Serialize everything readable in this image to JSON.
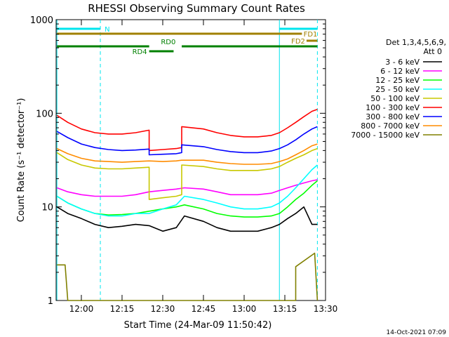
{
  "chart_data": {
    "type": "line",
    "title": "RHESSI Observing Summary Count Rates",
    "xlabel": "Start Time (24-Mar-09 11:50:42)",
    "ylabel": "Count Rate (s⁻¹ detector⁻¹)",
    "scale": {
      "y": "log"
    },
    "xlim": [
      "11:50:42",
      "13:30:00"
    ],
    "ylim": [
      1,
      1000
    ],
    "x_ticks": [
      "12:00",
      "12:15",
      "12:30",
      "12:45",
      "13:00",
      "13:15",
      "13:30"
    ],
    "y_ticks": [
      "1",
      "10",
      "100",
      "1000"
    ],
    "detector_info": {
      "line1": "Det 1,3,4,5,6,9,",
      "line2": "Att 0"
    },
    "legend": {
      "placement": "right"
    },
    "series": [
      {
        "name": "3 - 6 keV",
        "color": "#000000",
        "x": [
          "11:51",
          "11:55",
          "12:00",
          "12:05",
          "12:10",
          "12:15",
          "12:20",
          "12:25",
          "12:30",
          "12:35",
          "12:38",
          "12:45",
          "12:50",
          "12:55",
          "13:00",
          "13:05",
          "13:10",
          "13:13",
          "13:16",
          "13:19",
          "13:22",
          "13:25",
          "13:27"
        ],
        "y": [
          10,
          8.5,
          7.5,
          6.5,
          6,
          6.2,
          6.5,
          6.3,
          5.5,
          6,
          8,
          7,
          6,
          5.5,
          5.5,
          5.5,
          6,
          6.5,
          7.5,
          8.5,
          10,
          6.5,
          6.5
        ]
      },
      {
        "name": "6 - 12 keV",
        "color": "#ff00ff",
        "x": [
          "11:51",
          "11:55",
          "12:00",
          "12:05",
          "12:10",
          "12:15",
          "12:20",
          "12:25",
          "12:30",
          "12:35",
          "12:38",
          "12:45",
          "12:50",
          "12:55",
          "13:00",
          "13:05",
          "13:10",
          "13:13",
          "13:16",
          "13:19",
          "13:22",
          "13:25",
          "13:27"
        ],
        "y": [
          16,
          14.5,
          13.5,
          13,
          13,
          13,
          13.5,
          14.5,
          15,
          15.5,
          16,
          15.5,
          14.5,
          13.5,
          13.5,
          13.5,
          14,
          15,
          16,
          17,
          18,
          19,
          19.5
        ]
      },
      {
        "name": "12 - 25 keV",
        "color": "#00ff00",
        "x": [
          "11:51",
          "11:55",
          "12:00",
          "12:05",
          "12:10",
          "12:15",
          "12:20",
          "12:25",
          "12:30",
          "12:35",
          "12:38",
          "12:45",
          "12:50",
          "12:55",
          "13:00",
          "13:05",
          "13:10",
          "13:13",
          "13:16",
          "13:19",
          "13:22",
          "13:25",
          "13:27"
        ],
        "y": [
          13,
          11,
          9.5,
          8.5,
          8.2,
          8.3,
          8.5,
          9,
          9.5,
          10,
          10.5,
          9.5,
          8.5,
          8,
          7.8,
          7.8,
          8,
          8.5,
          10,
          12,
          14,
          17,
          19
        ]
      },
      {
        "name": "25 - 50 keV",
        "color": "#00ffff",
        "x": [
          "11:51",
          "11:55",
          "12:00",
          "12:05",
          "12:10",
          "12:15",
          "12:20",
          "12:25",
          "12:30",
          "12:35",
          "12:38",
          "12:45",
          "12:50",
          "12:55",
          "13:00",
          "13:05",
          "13:10",
          "13:13",
          "13:16",
          "13:19",
          "13:22",
          "13:25",
          "13:27"
        ],
        "y": [
          13,
          11,
          9.5,
          8.5,
          8,
          8,
          8.5,
          8.5,
          9.5,
          10.5,
          13,
          12,
          11,
          10,
          9.5,
          9.5,
          10,
          11,
          13,
          16,
          20,
          25,
          28
        ]
      },
      {
        "name": "50 - 100 keV",
        "color": "#c8c800",
        "x": [
          "11:51",
          "11:55",
          "12:00",
          "12:05",
          "12:10",
          "12:15",
          "12:20",
          "12:25",
          "12:25",
          "12:30",
          "12:35",
          "12:37",
          "12:37",
          "12:45",
          "12:50",
          "12:55",
          "13:00",
          "13:05",
          "13:10",
          "13:13",
          "13:16",
          "13:19",
          "13:22",
          "13:25",
          "13:27"
        ],
        "y": [
          38,
          32,
          28,
          26,
          25.5,
          25.5,
          26,
          26.5,
          12,
          12.5,
          13,
          13.5,
          28,
          27,
          25.5,
          24.5,
          24.5,
          24.5,
          25.5,
          27,
          30,
          33,
          36,
          40,
          42
        ]
      },
      {
        "name": "100 - 300 keV",
        "color": "#ff0000",
        "x": [
          "11:51",
          "11:55",
          "12:00",
          "12:05",
          "12:10",
          "12:15",
          "12:20",
          "12:25",
          "12:25",
          "12:30",
          "12:35",
          "12:37",
          "12:37",
          "12:45",
          "12:50",
          "12:55",
          "13:00",
          "13:05",
          "13:10",
          "13:13",
          "13:16",
          "13:19",
          "13:22",
          "13:25",
          "13:27"
        ],
        "y": [
          95,
          80,
          68,
          62,
          60,
          60,
          62,
          66,
          40,
          41,
          42,
          43,
          72,
          68,
          62,
          58,
          56,
          56,
          58,
          62,
          70,
          80,
          92,
          105,
          110
        ]
      },
      {
        "name": "300 - 800 keV",
        "color": "#0000ff",
        "x": [
          "11:51",
          "11:55",
          "12:00",
          "12:05",
          "12:10",
          "12:15",
          "12:20",
          "12:25",
          "12:25",
          "12:30",
          "12:35",
          "12:37",
          "12:37",
          "12:45",
          "12:50",
          "12:55",
          "13:00",
          "13:05",
          "13:10",
          "13:13",
          "13:16",
          "13:19",
          "13:22",
          "13:25",
          "13:27"
        ],
        "y": [
          64,
          55,
          47,
          43,
          41,
          40,
          40.5,
          41.5,
          36,
          36.5,
          37,
          38,
          46,
          44,
          41,
          39,
          38,
          38,
          39.5,
          42,
          46,
          52,
          60,
          68,
          72
        ]
      },
      {
        "name": "800 - 7000 keV",
        "color": "#ff8c00",
        "x": [
          "11:51",
          "11:55",
          "12:00",
          "12:05",
          "12:10",
          "12:15",
          "12:20",
          "12:25",
          "12:30",
          "12:35",
          "12:37",
          "12:45",
          "12:50",
          "12:55",
          "13:00",
          "13:05",
          "13:10",
          "13:13",
          "13:16",
          "13:19",
          "13:22",
          "13:25",
          "13:27"
        ],
        "y": [
          42,
          37,
          33,
          31,
          30.5,
          30,
          30.5,
          31,
          30.5,
          31,
          31.5,
          31.5,
          30,
          29,
          28.5,
          28.5,
          29,
          30.5,
          32.5,
          36,
          40,
          45,
          47
        ]
      },
      {
        "name": "7000 - 15000 keV",
        "color": "#808000",
        "x": [
          "11:51",
          "11:54",
          "11:55",
          "12:07",
          "12:07",
          "13:19",
          "13:19",
          "13:26",
          "13:27"
        ],
        "y": [
          2.4,
          2.4,
          1,
          1,
          1,
          1,
          2.3,
          3.2,
          1
        ]
      }
    ],
    "annotations": [
      {
        "label": "N",
        "color": "#00e5ee",
        "start": "11:51",
        "end": "12:07"
      },
      {
        "label": "",
        "color": "#00e5ee",
        "start": "13:13",
        "end": "13:27"
      },
      {
        "label": "FD1",
        "color": "#a08000",
        "start": "11:51",
        "end": "13:27"
      },
      {
        "label": "FD2",
        "color": "#a08000",
        "start": "13:23",
        "end": "13:27"
      },
      {
        "label": "RD0",
        "color": "#008000",
        "start": "11:51",
        "end": "13:27"
      },
      {
        "label": "RD4",
        "color": "#008000",
        "start": "12:25",
        "end": "12:34"
      }
    ],
    "footer_date": "14-Oct-2021 07:09"
  }
}
